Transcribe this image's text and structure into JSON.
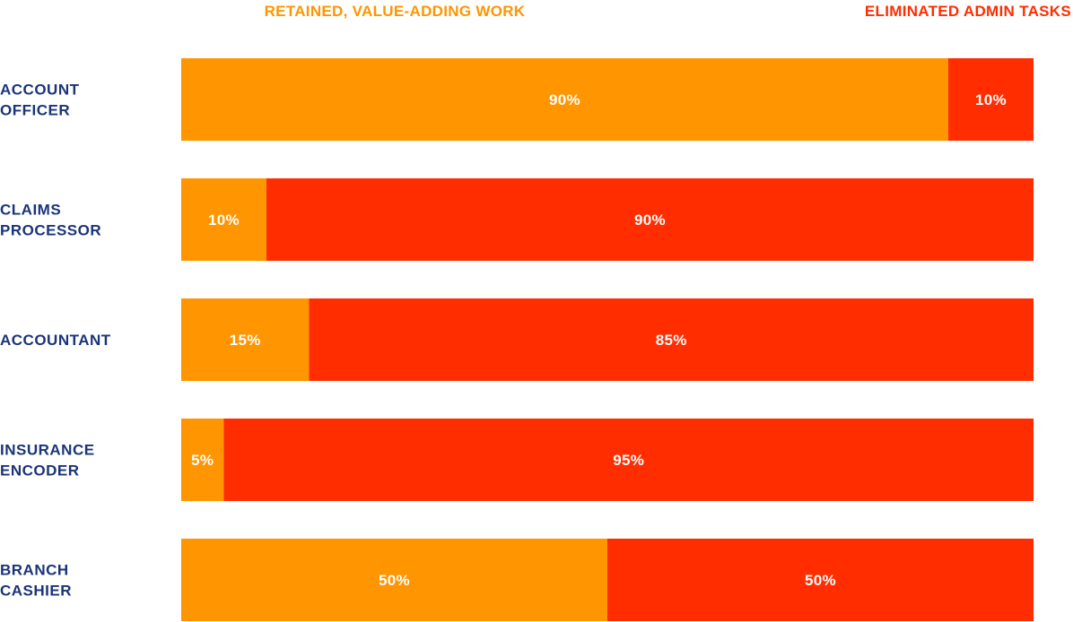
{
  "chart_data": {
    "type": "bar",
    "orientation": "horizontal",
    "stacked": true,
    "normalized": true,
    "title": "",
    "xlabel": "",
    "ylabel": "",
    "xlim": [
      0,
      100
    ],
    "grid": false,
    "legend_position": "top",
    "categories": [
      [
        "ACCOUNT",
        "OFFICER"
      ],
      [
        "CLAIMS",
        "PROCESSOR"
      ],
      [
        "ACCOUNTANT"
      ],
      [
        "INSURANCE",
        "ENCODER"
      ],
      [
        "BRANCH",
        "CASHIER"
      ]
    ],
    "series": [
      {
        "name": "RETAINED, VALUE-ADDING WORK",
        "color": "#FF9500",
        "values": [
          90,
          10,
          15,
          5,
          50
        ],
        "labels": [
          "90%",
          "10%",
          "15%",
          "5%",
          "50%"
        ]
      },
      {
        "name": "ELIMINATED ADMIN TASKS",
        "color": "#FF2D00",
        "values": [
          10,
          90,
          85,
          95,
          50
        ],
        "labels": [
          "10%",
          "90%",
          "85%",
          "95%",
          "50%"
        ]
      }
    ],
    "category_label_color": "#1A3478"
  }
}
